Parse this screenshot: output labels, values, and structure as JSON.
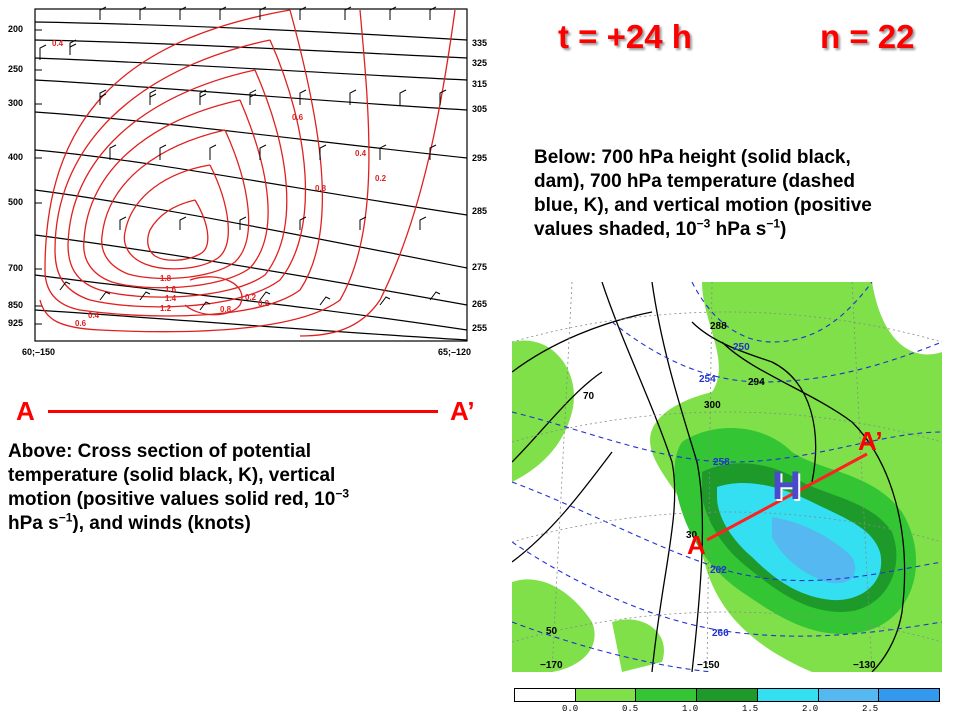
{
  "title": {
    "time": "t = +24 h",
    "member": "n = 22"
  },
  "cross_section": {
    "pressure_levels": [
      "200",
      "250",
      "300",
      "400",
      "500",
      "700",
      "850",
      "925"
    ],
    "theta_labels": [
      "335",
      "325",
      "315",
      "305",
      "295",
      "285",
      "275",
      "265",
      "255"
    ],
    "vertical_motion_labels": [
      "0.4",
      "0.6",
      "0.4",
      "0.2",
      "0.8",
      "1.8",
      "1.6",
      "1.4",
      "1.2",
      "0.2",
      "0.2",
      "0.4",
      "0.8",
      "0.6"
    ],
    "left_coord": "60;–150",
    "right_coord": "65;–120",
    "colors": {
      "theta": "#000000",
      "vertical_motion": "#e02020",
      "winds": "#000000"
    }
  },
  "section_line": {
    "start": "A",
    "end": "A’"
  },
  "caption_above": {
    "line1": "Above:  Cross section of potential",
    "line2": "temperature (solid black, K), vertical",
    "line3a": "motion (positive values solid red, 10",
    "line3_sup": "−3",
    "line4a": "hPa s",
    "line4_sup": "−1",
    "line4b": "), and winds (knots)"
  },
  "caption_below": {
    "line1": "Below:  700 hPa height (solid black,",
    "line2": "dam), 700 hPa temperature (dashed",
    "line3": "blue, K), and vertical motion (positive",
    "line4a": "values shaded, 10",
    "line4_sup": "−3",
    "line4b": " hPa s",
    "line4_sup2": "−1",
    "line4c": ")"
  },
  "map": {
    "height_labels": [
      "288",
      "294",
      "300",
      "70",
      "50",
      "30"
    ],
    "temperature_labels": [
      "250",
      "254",
      "258",
      "262",
      "266"
    ],
    "lon_labels": [
      "−170",
      "−150",
      "−130"
    ],
    "high_label": "H",
    "section_start": "A",
    "section_end": "A’",
    "colors": {
      "light_green": "#7fe04a",
      "green": "#33c533",
      "dark_green": "#1e9a2a",
      "cyan": "#33dff0",
      "sky": "#55b8f0",
      "blue_dash": "#2233cc",
      "section": "#ff2020",
      "high": "#4a4acc"
    }
  },
  "colorbar": {
    "labels": [
      "0.0",
      "0.5",
      "1.0",
      "1.5",
      "2.0",
      "2.5"
    ],
    "colors": [
      "#ffffff",
      "#7fe04a",
      "#33c533",
      "#1e9a2a",
      "#33dff0",
      "#55b8f0",
      "#3399ee"
    ]
  }
}
